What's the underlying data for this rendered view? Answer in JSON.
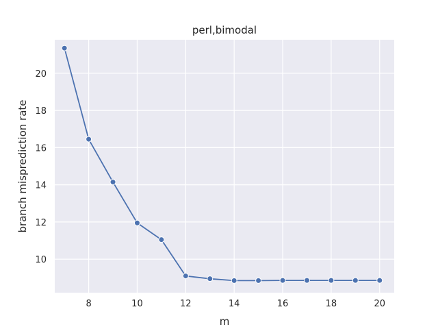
{
  "chart_data": {
    "type": "line",
    "title": "perl,bimodal",
    "xlabel": "m",
    "ylabel": "branch misprediction rate",
    "xlim": [
      6.6,
      20.6
    ],
    "ylim": [
      8.2,
      21.8
    ],
    "xticks": [
      8,
      10,
      12,
      14,
      16,
      18,
      20
    ],
    "yticks": [
      10,
      12,
      14,
      16,
      18,
      20
    ],
    "grid": true,
    "series": [
      {
        "color": "#4c72b0",
        "x": [
          7,
          8,
          9,
          10,
          11,
          12,
          13,
          14,
          15,
          16,
          17,
          18,
          19,
          20
        ],
        "y": [
          21.35,
          16.45,
          14.15,
          11.95,
          11.05,
          9.1,
          8.95,
          8.85,
          8.85,
          8.86,
          8.86,
          8.86,
          8.86,
          8.86
        ]
      }
    ]
  },
  "colors": {
    "plot_background": "#eaeaf2",
    "grid": "#ffffff",
    "text": "#262626"
  }
}
